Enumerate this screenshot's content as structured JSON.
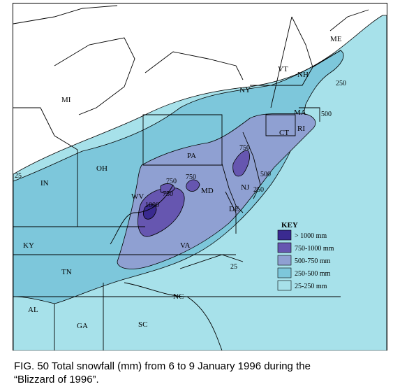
{
  "map": {
    "states": [
      "MI",
      "NY",
      "VT",
      "NH",
      "ME",
      "MA",
      "CT",
      "RI",
      "PA",
      "OH",
      "IN",
      "WV",
      "MD",
      "NJ",
      "DE",
      "VA",
      "KY",
      "TN",
      "NC",
      "SC",
      "GA",
      "AL"
    ],
    "contour_labels": [
      "25",
      "250",
      "500",
      "750",
      "750",
      "750",
      "750",
      "1000",
      "500",
      "250",
      "25"
    ],
    "colors": {
      "band_25_250": "#a7e1ea",
      "band_250_500": "#7dc7db",
      "band_500_750": "#8fa0d2",
      "band_750_1000": "#6656b0",
      "band_gt_1000": "#3a2a90"
    }
  },
  "key": {
    "title": "KEY",
    "items": [
      {
        "label": "> 1000 mm",
        "color": "#3a2a90"
      },
      {
        "label": "750-1000 mm",
        "color": "#6656b0"
      },
      {
        "label": "500-750 mm",
        "color": "#8fa0d2"
      },
      {
        "label": "250-500 mm",
        "color": "#7dc7db"
      },
      {
        "label": "25-250 mm",
        "color": "#a7e1ea"
      }
    ]
  },
  "caption": {
    "line1": "FIG. 50 Total snowfall (mm) from 6 to 9 January 1996 during the",
    "line2": "“Blizzard of 1996”."
  }
}
